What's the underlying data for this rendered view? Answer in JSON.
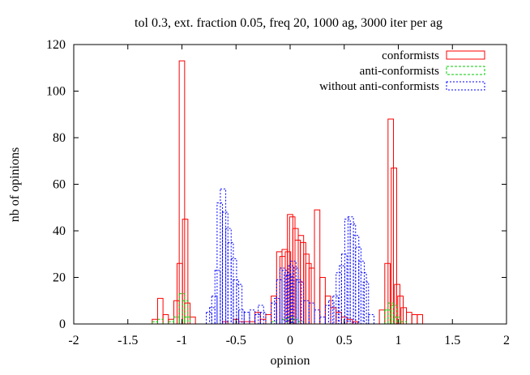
{
  "chart_data": {
    "type": "bar",
    "title": "tol 0.3, ext. fraction 0.05, freq 20, 1000 ag, 3000 iter per ag",
    "xlabel": "opinion",
    "ylabel": "nb of opinions",
    "xlim": [
      -2,
      2
    ],
    "ylim": [
      0,
      120
    ],
    "x_ticks": [
      -2,
      -1.5,
      -1,
      -0.5,
      0,
      0.5,
      1,
      1.5,
      2
    ],
    "y_ticks": [
      0,
      20,
      40,
      60,
      80,
      100,
      120
    ],
    "x_tick_labels": [
      "-2",
      "-1.5",
      "-1",
      "-0.5",
      "0",
      "0.5",
      "1",
      "1.5",
      "2"
    ],
    "y_tick_labels": [
      "0",
      "20",
      "40",
      "60",
      "80",
      "100",
      "120"
    ],
    "legend_position": "top-right",
    "bin_width": 0.05,
    "series": [
      {
        "name": "conformists",
        "color": "#ff0000",
        "dash": "none",
        "bins": [
          [
            -1.25,
            2
          ],
          [
            -1.2,
            11
          ],
          [
            -1.15,
            4
          ],
          [
            -1.1,
            2
          ],
          [
            -1.05,
            10
          ],
          [
            -1.02,
            26
          ],
          [
            -1.0,
            113
          ],
          [
            -0.97,
            45
          ],
          [
            -0.95,
            9
          ],
          [
            -0.9,
            3
          ],
          [
            -0.6,
            1
          ],
          [
            -0.5,
            2
          ],
          [
            -0.45,
            1
          ],
          [
            -0.4,
            1
          ],
          [
            -0.35,
            1
          ],
          [
            -0.3,
            5
          ],
          [
            -0.25,
            2
          ],
          [
            -0.2,
            4
          ],
          [
            -0.15,
            12
          ],
          [
            -0.1,
            31
          ],
          [
            -0.07,
            29
          ],
          [
            -0.05,
            32
          ],
          [
            -0.02,
            31
          ],
          [
            0.0,
            47
          ],
          [
            0.02,
            46
          ],
          [
            0.05,
            41
          ],
          [
            0.07,
            36
          ],
          [
            0.1,
            38
          ],
          [
            0.12,
            35
          ],
          [
            0.15,
            30
          ],
          [
            0.17,
            26
          ],
          [
            0.2,
            24
          ],
          [
            0.25,
            49
          ],
          [
            0.3,
            20
          ],
          [
            0.35,
            12
          ],
          [
            0.4,
            7
          ],
          [
            0.45,
            5
          ],
          [
            0.5,
            3
          ],
          [
            0.55,
            2
          ],
          [
            0.6,
            1
          ],
          [
            0.85,
            6
          ],
          [
            0.9,
            26
          ],
          [
            0.93,
            88
          ],
          [
            0.96,
            67
          ],
          [
            0.99,
            17
          ],
          [
            1.02,
            12
          ],
          [
            1.05,
            7
          ],
          [
            1.1,
            5
          ],
          [
            1.15,
            4
          ],
          [
            1.2,
            4
          ]
        ]
      },
      {
        "name": "anti-conformists",
        "color": "#00cc00",
        "dash": "3,2",
        "bins": [
          [
            -1.25,
            1
          ],
          [
            -1.2,
            2
          ],
          [
            -1.1,
            1
          ],
          [
            -1.05,
            3
          ],
          [
            -1.0,
            13
          ],
          [
            -0.97,
            10
          ],
          [
            -0.95,
            3
          ],
          [
            -0.15,
            1
          ],
          [
            -0.05,
            2
          ],
          [
            0.0,
            3
          ],
          [
            0.05,
            2
          ],
          [
            0.1,
            1
          ],
          [
            0.9,
            6
          ],
          [
            0.93,
            9
          ],
          [
            0.96,
            8
          ],
          [
            0.99,
            3
          ],
          [
            1.05,
            1
          ]
        ]
      },
      {
        "name": "without anti-conformists",
        "color": "#0000ff",
        "dash": "2,2",
        "bins": [
          [
            -0.75,
            5
          ],
          [
            -0.72,
            7
          ],
          [
            -0.7,
            12
          ],
          [
            -0.67,
            23
          ],
          [
            -0.65,
            52
          ],
          [
            -0.62,
            58
          ],
          [
            -0.6,
            48
          ],
          [
            -0.57,
            41
          ],
          [
            -0.55,
            35
          ],
          [
            -0.52,
            28
          ],
          [
            -0.5,
            19
          ],
          [
            -0.47,
            17
          ],
          [
            -0.45,
            6
          ],
          [
            -0.4,
            5
          ],
          [
            -0.35,
            6
          ],
          [
            -0.3,
            4
          ],
          [
            -0.27,
            8
          ],
          [
            -0.25,
            5
          ],
          [
            -0.15,
            9
          ],
          [
            -0.12,
            11
          ],
          [
            -0.1,
            19
          ],
          [
            -0.07,
            24
          ],
          [
            -0.05,
            23
          ],
          [
            -0.03,
            22
          ],
          [
            -0.01,
            21
          ],
          [
            0.01,
            25
          ],
          [
            0.03,
            27
          ],
          [
            0.05,
            24
          ],
          [
            0.08,
            19
          ],
          [
            0.1,
            18
          ],
          [
            0.15,
            10
          ],
          [
            0.2,
            9
          ],
          [
            0.25,
            6
          ],
          [
            0.3,
            3
          ],
          [
            0.35,
            8
          ],
          [
            0.38,
            10
          ],
          [
            0.42,
            12
          ],
          [
            0.45,
            22
          ],
          [
            0.48,
            25
          ],
          [
            0.5,
            30
          ],
          [
            0.53,
            45
          ],
          [
            0.56,
            46
          ],
          [
            0.58,
            43
          ],
          [
            0.61,
            38
          ],
          [
            0.63,
            33
          ],
          [
            0.66,
            27
          ],
          [
            0.68,
            22
          ],
          [
            0.7,
            18
          ],
          [
            0.75,
            4
          ]
        ]
      }
    ]
  }
}
